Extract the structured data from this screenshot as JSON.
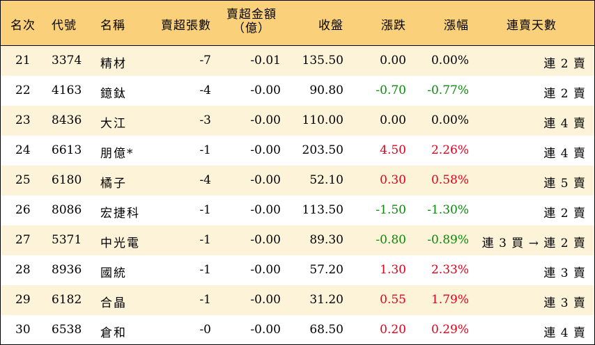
{
  "headers": {
    "rank": "名次",
    "code": "代號",
    "name": "名稱",
    "lots": "賣超張數",
    "amount_line1": "賣超金額",
    "amount_line2": "（億）",
    "close": "收盤",
    "change": "漲跌",
    "pct": "漲幅",
    "streak": "連賣天數"
  },
  "colors": {
    "header_bg": "#fad17a",
    "stripe": "#fdf3d8",
    "up": "#e3001b",
    "down": "#0a8a0a"
  },
  "rows": [
    {
      "rank": "21",
      "code": "3374",
      "name": "精材",
      "lots": "-7",
      "amount": "-0.01",
      "close": "135.50",
      "change": "0.00",
      "pct": "0.00%",
      "trend": "flat",
      "streak": "連 2 賣"
    },
    {
      "rank": "22",
      "code": "4163",
      "name": "鐿鈦",
      "lots": "-4",
      "amount": "-0.00",
      "close": "90.80",
      "change": "-0.70",
      "pct": "-0.77%",
      "trend": "down",
      "streak": "連 2 賣"
    },
    {
      "rank": "23",
      "code": "8436",
      "name": "大江",
      "lots": "-3",
      "amount": "-0.00",
      "close": "110.00",
      "change": "0.00",
      "pct": "0.00%",
      "trend": "flat",
      "streak": "連 4 賣"
    },
    {
      "rank": "24",
      "code": "6613",
      "name": "朋億*",
      "lots": "-1",
      "amount": "-0.00",
      "close": "203.50",
      "change": "4.50",
      "pct": "2.26%",
      "trend": "up",
      "streak": "連 4 賣"
    },
    {
      "rank": "25",
      "code": "6180",
      "name": "橘子",
      "lots": "-4",
      "amount": "-0.00",
      "close": "52.10",
      "change": "0.30",
      "pct": "0.58%",
      "trend": "up",
      "streak": "連 5 賣"
    },
    {
      "rank": "26",
      "code": "8086",
      "name": "宏捷科",
      "lots": "-1",
      "amount": "-0.00",
      "close": "113.50",
      "change": "-1.50",
      "pct": "-1.30%",
      "trend": "down",
      "streak": "連 2 賣"
    },
    {
      "rank": "27",
      "code": "5371",
      "name": "中光電",
      "lots": "-1",
      "amount": "-0.00",
      "close": "89.30",
      "change": "-0.80",
      "pct": "-0.89%",
      "trend": "down",
      "streak": "連 3 買 → 連 2 賣"
    },
    {
      "rank": "28",
      "code": "8936",
      "name": "國統",
      "lots": "-1",
      "amount": "-0.00",
      "close": "57.20",
      "change": "1.30",
      "pct": "2.33%",
      "trend": "up",
      "streak": "連 3 賣"
    },
    {
      "rank": "29",
      "code": "6182",
      "name": "合晶",
      "lots": "-1",
      "amount": "-0.00",
      "close": "31.20",
      "change": "0.55",
      "pct": "1.79%",
      "trend": "up",
      "streak": "連 3 賣"
    },
    {
      "rank": "30",
      "code": "6538",
      "name": "倉和",
      "lots": "-0",
      "amount": "-0.00",
      "close": "68.50",
      "change": "0.20",
      "pct": "0.29%",
      "trend": "up",
      "streak": "連 4 賣"
    }
  ]
}
